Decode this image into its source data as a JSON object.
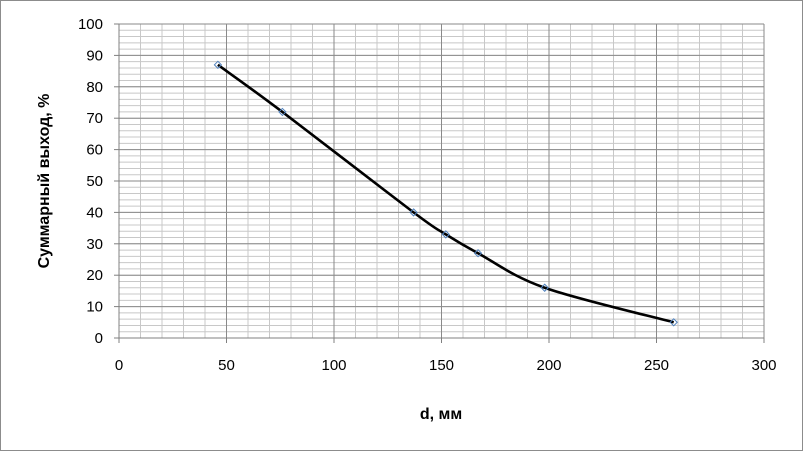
{
  "chart_data": {
    "type": "line",
    "title": "",
    "xlabel": "d, мм",
    "ylabel": "Суммарный выход, %",
    "xlim": [
      0,
      300
    ],
    "ylim": [
      0,
      100
    ],
    "x_ticks": [
      "0",
      "50",
      "100",
      "150",
      "200",
      "250",
      "300"
    ],
    "y_ticks": [
      "0",
      "10",
      "20",
      "30",
      "40",
      "50",
      "60",
      "70",
      "80",
      "90",
      "100"
    ],
    "grid": true,
    "legend": "none",
    "series": [
      {
        "x": [
          46,
          76,
          137,
          152,
          167,
          198,
          258
        ],
        "y": [
          87,
          72,
          40,
          33,
          27,
          16,
          5
        ],
        "line_color": "#000000",
        "marker": "diamond",
        "marker_color": "#4f81bd"
      }
    ]
  }
}
